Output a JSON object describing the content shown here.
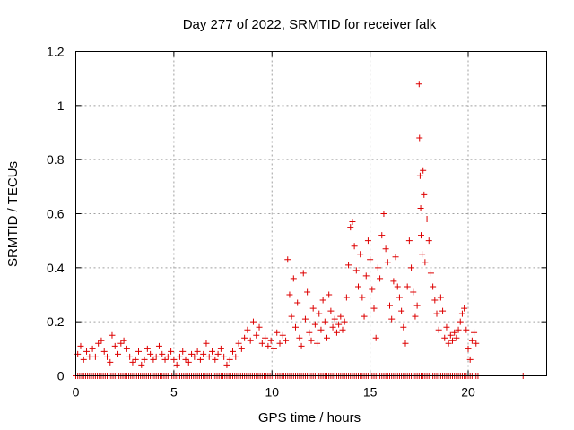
{
  "chart_data": {
    "type": "scatter",
    "title": "Day 277 of 2022, SRMTID for receiver falk",
    "xlabel": "GPS time / hours",
    "ylabel": "SRMTID / TECUs",
    "xlim": [
      0,
      24
    ],
    "ylim": [
      0,
      1.2
    ],
    "x_ticks": [
      0,
      5,
      10,
      15,
      20
    ],
    "x_tick_labels": [
      "0",
      "5",
      "10",
      "15",
      "20"
    ],
    "y_ticks": [
      0,
      0.2,
      0.4,
      0.6,
      0.8,
      1.0,
      1.2
    ],
    "y_tick_labels": [
      "0",
      "0.2",
      "0.4",
      "0.6",
      "0.8",
      "1",
      "1.2"
    ],
    "grid": true,
    "marker": "+",
    "marker_color": "#dd0000",
    "baseline_points": {
      "y": 0,
      "x_start": 0,
      "x_end": 20.5,
      "x_step": 0.1,
      "extra_x": [
        22.8
      ]
    },
    "series": [
      {
        "name": "SRMTID",
        "points": [
          [
            0.1,
            0.08
          ],
          [
            0.25,
            0.11
          ],
          [
            0.4,
            0.06
          ],
          [
            0.55,
            0.09
          ],
          [
            0.7,
            0.07
          ],
          [
            0.85,
            0.1
          ],
          [
            1.0,
            0.07
          ],
          [
            1.15,
            0.12
          ],
          [
            1.3,
            0.13
          ],
          [
            1.45,
            0.09
          ],
          [
            1.6,
            0.07
          ],
          [
            1.75,
            0.05
          ],
          [
            1.85,
            0.15
          ],
          [
            2.0,
            0.11
          ],
          [
            2.15,
            0.08
          ],
          [
            2.3,
            0.12
          ],
          [
            2.45,
            0.13
          ],
          [
            2.6,
            0.1
          ],
          [
            2.75,
            0.07
          ],
          [
            2.9,
            0.05
          ],
          [
            3.05,
            0.06
          ],
          [
            3.2,
            0.09
          ],
          [
            3.35,
            0.04
          ],
          [
            3.5,
            0.06
          ],
          [
            3.65,
            0.1
          ],
          [
            3.8,
            0.08
          ],
          [
            3.95,
            0.06
          ],
          [
            4.1,
            0.07
          ],
          [
            4.25,
            0.11
          ],
          [
            4.4,
            0.08
          ],
          [
            4.55,
            0.06
          ],
          [
            4.7,
            0.07
          ],
          [
            4.85,
            0.09
          ],
          [
            5.0,
            0.06
          ],
          [
            5.15,
            0.04
          ],
          [
            5.3,
            0.07
          ],
          [
            5.45,
            0.09
          ],
          [
            5.6,
            0.06
          ],
          [
            5.75,
            0.05
          ],
          [
            5.9,
            0.08
          ],
          [
            6.05,
            0.07
          ],
          [
            6.2,
            0.09
          ],
          [
            6.35,
            0.06
          ],
          [
            6.5,
            0.08
          ],
          [
            6.65,
            0.12
          ],
          [
            6.8,
            0.07
          ],
          [
            6.95,
            0.09
          ],
          [
            7.1,
            0.06
          ],
          [
            7.25,
            0.08
          ],
          [
            7.4,
            0.1
          ],
          [
            7.55,
            0.07
          ],
          [
            7.7,
            0.04
          ],
          [
            7.85,
            0.06
          ],
          [
            8.0,
            0.09
          ],
          [
            8.15,
            0.07
          ],
          [
            8.3,
            0.12
          ],
          [
            8.45,
            0.1
          ],
          [
            8.6,
            0.14
          ],
          [
            8.75,
            0.17
          ],
          [
            8.9,
            0.13
          ],
          [
            9.05,
            0.2
          ],
          [
            9.2,
            0.15
          ],
          [
            9.35,
            0.18
          ],
          [
            9.5,
            0.12
          ],
          [
            9.65,
            0.14
          ],
          [
            9.8,
            0.11
          ],
          [
            9.95,
            0.13
          ],
          [
            10.1,
            0.1
          ],
          [
            10.25,
            0.16
          ],
          [
            10.4,
            0.12
          ],
          [
            10.55,
            0.15
          ],
          [
            10.7,
            0.13
          ],
          [
            10.8,
            0.43
          ],
          [
            10.9,
            0.3
          ],
          [
            11.0,
            0.22
          ],
          [
            11.1,
            0.36
          ],
          [
            11.2,
            0.18
          ],
          [
            11.3,
            0.27
          ],
          [
            11.4,
            0.14
          ],
          [
            11.5,
            0.11
          ],
          [
            11.6,
            0.38
          ],
          [
            11.7,
            0.21
          ],
          [
            11.8,
            0.31
          ],
          [
            11.9,
            0.16
          ],
          [
            12.0,
            0.13
          ],
          [
            12.1,
            0.25
          ],
          [
            12.2,
            0.19
          ],
          [
            12.3,
            0.12
          ],
          [
            12.4,
            0.23
          ],
          [
            12.5,
            0.17
          ],
          [
            12.6,
            0.28
          ],
          [
            12.7,
            0.2
          ],
          [
            12.8,
            0.14
          ],
          [
            12.9,
            0.3
          ],
          [
            13.0,
            0.24
          ],
          [
            13.1,
            0.18
          ],
          [
            13.2,
            0.21
          ],
          [
            13.3,
            0.16
          ],
          [
            13.4,
            0.19
          ],
          [
            13.5,
            0.22
          ],
          [
            13.6,
            0.17
          ],
          [
            13.7,
            0.2
          ],
          [
            13.8,
            0.29
          ],
          [
            13.9,
            0.41
          ],
          [
            14.0,
            0.55
          ],
          [
            14.1,
            0.57
          ],
          [
            14.2,
            0.48
          ],
          [
            14.3,
            0.39
          ],
          [
            14.4,
            0.33
          ],
          [
            14.5,
            0.45
          ],
          [
            14.6,
            0.29
          ],
          [
            14.7,
            0.22
          ],
          [
            14.8,
            0.37
          ],
          [
            14.9,
            0.5
          ],
          [
            15.0,
            0.43
          ],
          [
            15.1,
            0.32
          ],
          [
            15.2,
            0.25
          ],
          [
            15.3,
            0.14
          ],
          [
            15.4,
            0.4
          ],
          [
            15.5,
            0.36
          ],
          [
            15.6,
            0.52
          ],
          [
            15.7,
            0.6
          ],
          [
            15.8,
            0.47
          ],
          [
            15.9,
            0.42
          ],
          [
            16.0,
            0.26
          ],
          [
            16.1,
            0.21
          ],
          [
            16.2,
            0.35
          ],
          [
            16.3,
            0.44
          ],
          [
            16.4,
            0.33
          ],
          [
            16.5,
            0.29
          ],
          [
            16.6,
            0.24
          ],
          [
            16.7,
            0.18
          ],
          [
            16.8,
            0.12
          ],
          [
            16.9,
            0.33
          ],
          [
            17.0,
            0.5
          ],
          [
            17.1,
            0.4
          ],
          [
            17.2,
            0.31
          ],
          [
            17.3,
            0.22
          ],
          [
            17.4,
            0.26
          ],
          [
            17.5,
            1.08
          ],
          [
            17.52,
            0.88
          ],
          [
            17.55,
            0.74
          ],
          [
            17.58,
            0.62
          ],
          [
            17.6,
            0.52
          ],
          [
            17.65,
            0.45
          ],
          [
            17.7,
            0.76
          ],
          [
            17.75,
            0.67
          ],
          [
            17.8,
            0.42
          ],
          [
            17.9,
            0.58
          ],
          [
            18.0,
            0.5
          ],
          [
            18.1,
            0.38
          ],
          [
            18.2,
            0.33
          ],
          [
            18.3,
            0.28
          ],
          [
            18.4,
            0.23
          ],
          [
            18.5,
            0.17
          ],
          [
            18.6,
            0.29
          ],
          [
            18.7,
            0.24
          ],
          [
            18.8,
            0.14
          ],
          [
            18.9,
            0.18
          ],
          [
            19.0,
            0.12
          ],
          [
            19.1,
            0.15
          ],
          [
            19.2,
            0.13
          ],
          [
            19.3,
            0.16
          ],
          [
            19.4,
            0.14
          ],
          [
            19.5,
            0.17
          ],
          [
            19.6,
            0.2
          ],
          [
            19.7,
            0.23
          ],
          [
            19.8,
            0.25
          ],
          [
            19.9,
            0.17
          ],
          [
            20.0,
            0.1
          ],
          [
            20.1,
            0.06
          ],
          [
            20.2,
            0.13
          ],
          [
            20.3,
            0.16
          ],
          [
            20.4,
            0.12
          ]
        ]
      }
    ]
  }
}
